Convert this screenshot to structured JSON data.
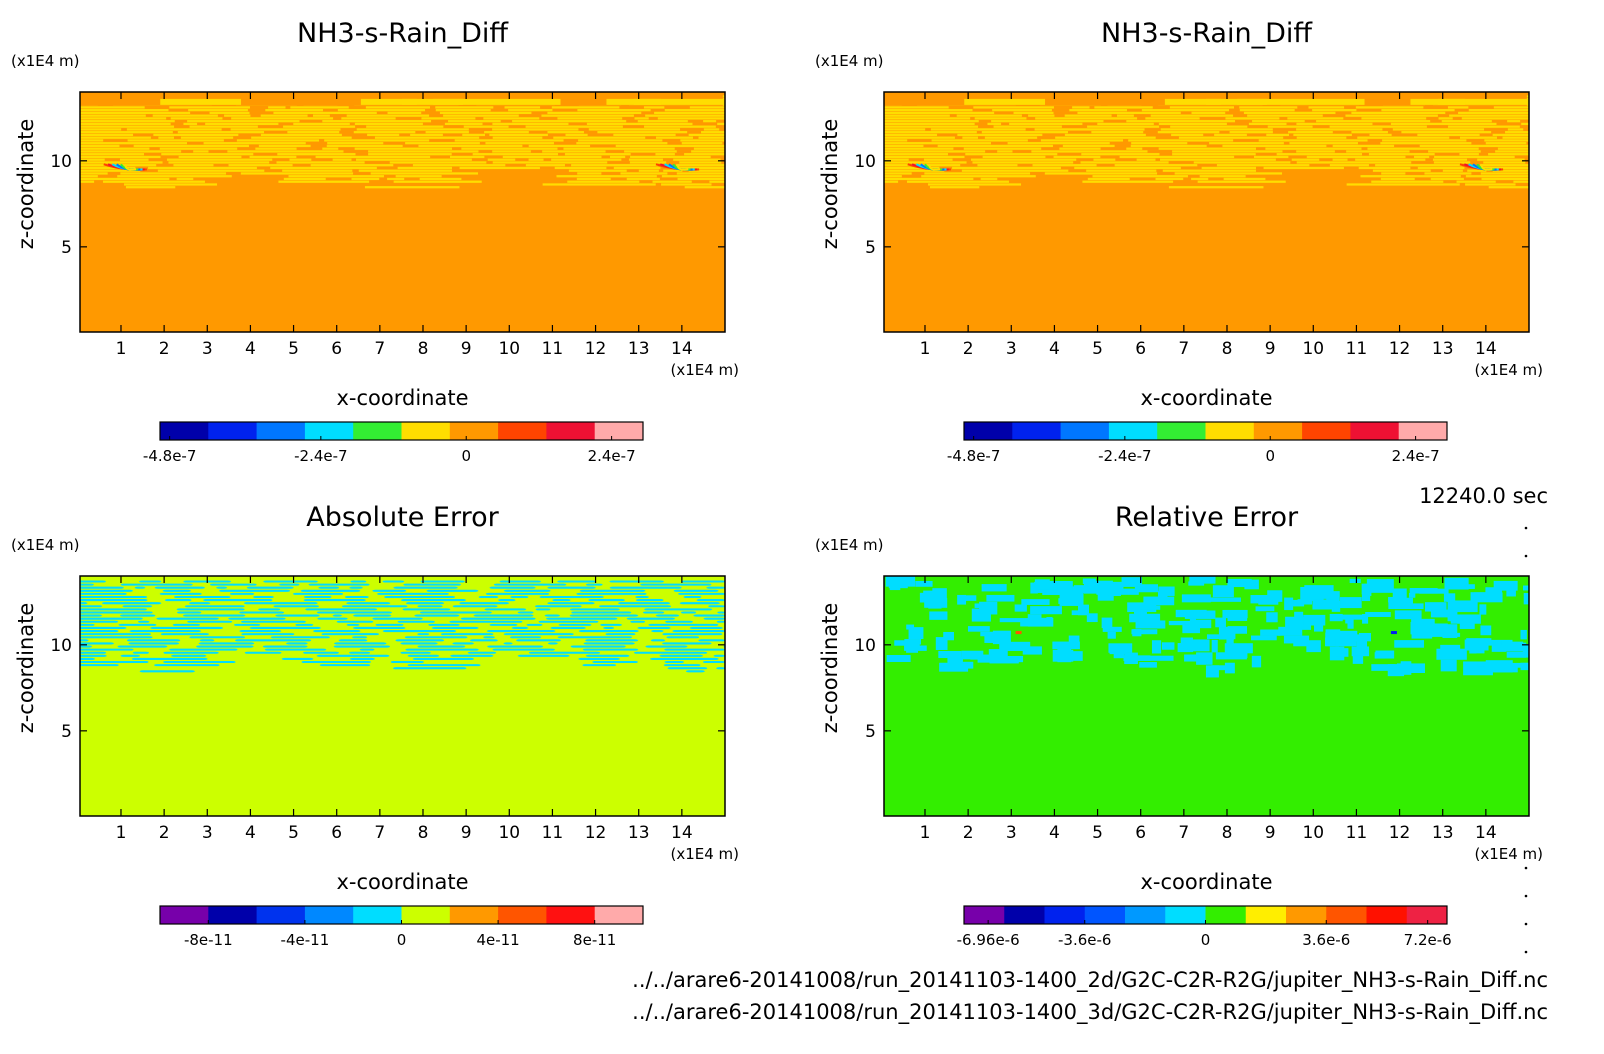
{
  "time_label": "12240.0 sec",
  "footer": {
    "file_2d": "../../arare6-20141008/run_20141103-1400_2d/G2C-C2R-R2G/jupiter_NH3-s-Rain_Diff.nc",
    "file_3d": "../../arare6-20141008/run_20141103-1400_3d/G2C-C2R-R2G/jupiter_NH3-s-Rain_Diff.nc"
  },
  "chart_data": [
    {
      "type": "heatmap",
      "title": "NH3-s-Rain_Diff",
      "xlabel": "x-coordinate",
      "ylabel": "z-coordinate",
      "x_unit": "(x1E4 m)",
      "y_unit": "(x1E4 m)",
      "x_ticks": [
        "1",
        "2",
        "3",
        "4",
        "5",
        "6",
        "7",
        "8",
        "9",
        "10",
        "11",
        "12",
        "13",
        "14"
      ],
      "y_ticks": [
        "5",
        "10"
      ],
      "xlim": [
        0.05,
        15.0
      ],
      "ylim": [
        0.05,
        14.0
      ],
      "pattern": "rain",
      "base_color": "#ff9900",
      "pattern_colors": [
        "#ffdd00",
        "#ffdd00",
        "#ff9900"
      ],
      "colorbar": {
        "colors": [
          "#0000aa",
          "#0022ee",
          "#0077ff",
          "#00ddff",
          "#33ee33",
          "#ffdd00",
          "#ff9900",
          "#ff4400",
          "#ee1133",
          "#ffaaaa"
        ],
        "labels": [
          "-4.8e-7",
          "-2.4e-7",
          "0",
          "2.4e-7"
        ]
      }
    },
    {
      "type": "heatmap",
      "title": "NH3-s-Rain_Diff",
      "xlabel": "x-coordinate",
      "ylabel": "z-coordinate",
      "x_unit": "(x1E4 m)",
      "y_unit": "(x1E4 m)",
      "x_ticks": [
        "1",
        "2",
        "3",
        "4",
        "5",
        "6",
        "7",
        "8",
        "9",
        "10",
        "11",
        "12",
        "13",
        "14"
      ],
      "y_ticks": [
        "5",
        "10"
      ],
      "xlim": [
        0.05,
        15.0
      ],
      "ylim": [
        0.05,
        14.0
      ],
      "pattern": "rain",
      "base_color": "#ff9900",
      "pattern_colors": [
        "#ffdd00",
        "#ffdd00",
        "#ff9900"
      ],
      "colorbar": {
        "colors": [
          "#0000aa",
          "#0022ee",
          "#0077ff",
          "#00ddff",
          "#33ee33",
          "#ffdd00",
          "#ff9900",
          "#ff4400",
          "#ee1133",
          "#ffaaaa"
        ],
        "labels": [
          "-4.8e-7",
          "-2.4e-7",
          "0",
          "2.4e-7"
        ]
      }
    },
    {
      "type": "heatmap",
      "title": "Absolute Error",
      "xlabel": "x-coordinate",
      "ylabel": "z-coordinate",
      "x_unit": "(x1E4 m)",
      "y_unit": "(x1E4 m)",
      "x_ticks": [
        "1",
        "2",
        "3",
        "4",
        "5",
        "6",
        "7",
        "8",
        "9",
        "10",
        "11",
        "12",
        "13",
        "14"
      ],
      "y_ticks": [
        "5",
        "10"
      ],
      "xlim": [
        0.05,
        15.0
      ],
      "ylim": [
        0.05,
        14.0
      ],
      "pattern": "abs",
      "base_color": "#ccff00",
      "pattern_colors": [
        "#00ddff"
      ],
      "colorbar": {
        "colors": [
          "#7700aa",
          "#0000aa",
          "#0033ee",
          "#0088ff",
          "#00ddff",
          "#ccff00",
          "#ff9900",
          "#ff5500",
          "#ff1111",
          "#ffaaaa"
        ],
        "labels": [
          "-8e-11",
          "-4e-11",
          "0",
          "4e-11",
          "8e-11"
        ]
      }
    },
    {
      "type": "heatmap",
      "title": "Relative Error",
      "xlabel": "x-coordinate",
      "ylabel": "z-coordinate",
      "x_unit": "(x1E4 m)",
      "y_unit": "(x1E4 m)",
      "x_ticks": [
        "1",
        "2",
        "3",
        "4",
        "5",
        "6",
        "7",
        "8",
        "9",
        "10",
        "11",
        "12",
        "13",
        "14"
      ],
      "y_ticks": [
        "5",
        "10"
      ],
      "xlim": [
        0.05,
        15.0
      ],
      "ylim": [
        0.05,
        14.0
      ],
      "pattern": "rel",
      "base_color": "#33ee00",
      "pattern_colors": [
        "#00ddff"
      ],
      "colorbar": {
        "colors": [
          "#7700aa",
          "#0000aa",
          "#0022ee",
          "#0055ff",
          "#0099ff",
          "#00ddff",
          "#33ee00",
          "#ffee00",
          "#ff9900",
          "#ff5500",
          "#ff1100",
          "#ee2244"
        ],
        "labels": [
          "-6.96e-6",
          "-3.6e-6",
          "0",
          "3.6e-6",
          "7.2e-6"
        ]
      }
    }
  ]
}
